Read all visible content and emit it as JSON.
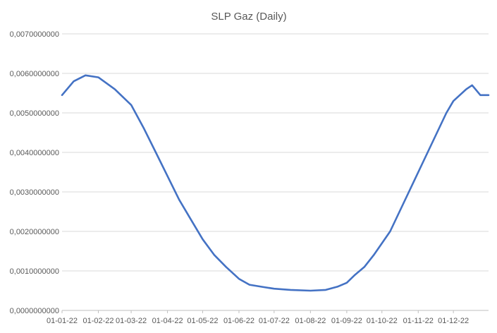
{
  "chart_data": {
    "type": "line",
    "title": "SLP Gaz (Daily)",
    "xlabel": "",
    "ylabel": "",
    "ylim": [
      0,
      0.007
    ],
    "y_ticks": [
      0,
      0.001,
      0.002,
      0.003,
      0.004,
      0.005,
      0.006,
      0.007
    ],
    "y_tick_labels": [
      "0,0000000000",
      "0,0010000000",
      "0,0020000000",
      "0,0030000000",
      "0,0040000000",
      "0,0050000000",
      "0,0060000000",
      "0,0070000000"
    ],
    "x_tick_labels": [
      "01-01-22",
      "01-02-22",
      "01-03-22",
      "01-04-22",
      "01-05-22",
      "01-06-22",
      "01-07-22",
      "01-08-22",
      "01-09-22",
      "01-10-22",
      "01-11-22",
      "01-12-22"
    ],
    "x_tick_days": [
      0,
      31,
      59,
      90,
      120,
      151,
      181,
      212,
      243,
      273,
      304,
      334
    ],
    "xlim_days": [
      0,
      364
    ],
    "grid": true,
    "legend": "none",
    "series_color": "#4472c4",
    "series": [
      {
        "x_days": [
          0,
          10,
          20,
          31,
          45,
          59,
          70,
          80,
          90,
          100,
          110,
          120,
          130,
          140,
          151,
          160,
          170,
          181,
          195,
          212,
          225,
          235,
          243,
          250,
          258,
          266,
          273,
          280,
          288,
          296,
          304,
          312,
          320,
          328,
          334,
          345,
          350,
          357,
          364
        ],
        "values": [
          0.00545,
          0.0058,
          0.00595,
          0.0059,
          0.0056,
          0.0052,
          0.0046,
          0.004,
          0.0034,
          0.0028,
          0.0023,
          0.0018,
          0.0014,
          0.0011,
          0.0008,
          0.00065,
          0.0006,
          0.00055,
          0.00052,
          0.0005,
          0.00052,
          0.0006,
          0.0007,
          0.0009,
          0.0011,
          0.0014,
          0.0017,
          0.002,
          0.0025,
          0.003,
          0.0035,
          0.004,
          0.0045,
          0.005,
          0.0053,
          0.0056,
          0.0057,
          0.00545,
          0.00545
        ]
      }
    ]
  }
}
